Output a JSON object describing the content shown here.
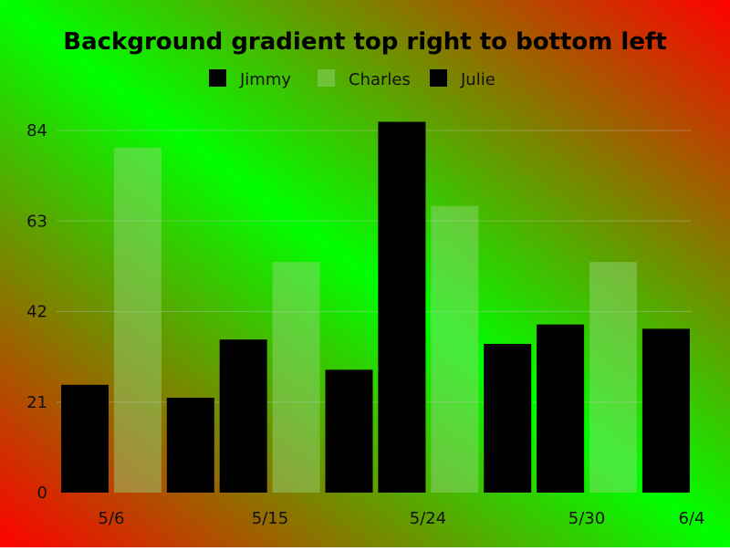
{
  "chart_data": {
    "type": "bar",
    "title": "Background gradient top right to bottom left",
    "xlabel": "",
    "ylabel": "",
    "x_tick_labels": [
      "5/6",
      "5/15",
      "5/24",
      "5/30",
      "6/4"
    ],
    "y_tick_labels": [
      "0",
      "21",
      "42",
      "63",
      "84"
    ],
    "ylim": [
      0,
      84
    ],
    "grid": true,
    "legend_position": "top",
    "series": [
      {
        "name": "Jimmy",
        "color": "#000000",
        "points": [
          {
            "x": "5/6",
            "y": 25
          },
          {
            "x": "5/15",
            "y": 35.5
          },
          {
            "x": "5/24",
            "y": 86
          },
          {
            "x": "5/30",
            "y": 39
          }
        ]
      },
      {
        "name": "Charles",
        "color": "#7ec850",
        "points": [
          {
            "x": "5/6",
            "y": 80
          },
          {
            "x": "5/15",
            "y": 53.5
          },
          {
            "x": "5/24",
            "y": 66.5
          },
          {
            "x": "5/30",
            "y": 53.5
          }
        ]
      },
      {
        "name": "Julie",
        "color": "#000000",
        "points": [
          {
            "x": "5/6",
            "y": 22
          },
          {
            "x": "5/15",
            "y": 28.5
          },
          {
            "x": "5/24",
            "y": 34.5
          },
          {
            "x": "5/30",
            "y": 38
          }
        ]
      }
    ],
    "bar_order": [
      {
        "series": 0,
        "point": 0
      },
      {
        "series": 1,
        "point": 0
      },
      {
        "series": 2,
        "point": 0
      },
      {
        "series": 0,
        "point": 1
      },
      {
        "series": 1,
        "point": 1
      },
      {
        "series": 2,
        "point": 1
      },
      {
        "series": 0,
        "point": 2
      },
      {
        "series": 1,
        "point": 2
      },
      {
        "series": 2,
        "point": 2
      },
      {
        "series": 0,
        "point": 3
      },
      {
        "series": 1,
        "point": 3
      },
      {
        "series": 2,
        "point": 3
      }
    ]
  },
  "colors": {
    "gradient_top_right": "#ff0000",
    "gradient_mid": "#00ff00",
    "gradient_bottom_left": "#ff0000",
    "grid": "#c8c8c8"
  }
}
